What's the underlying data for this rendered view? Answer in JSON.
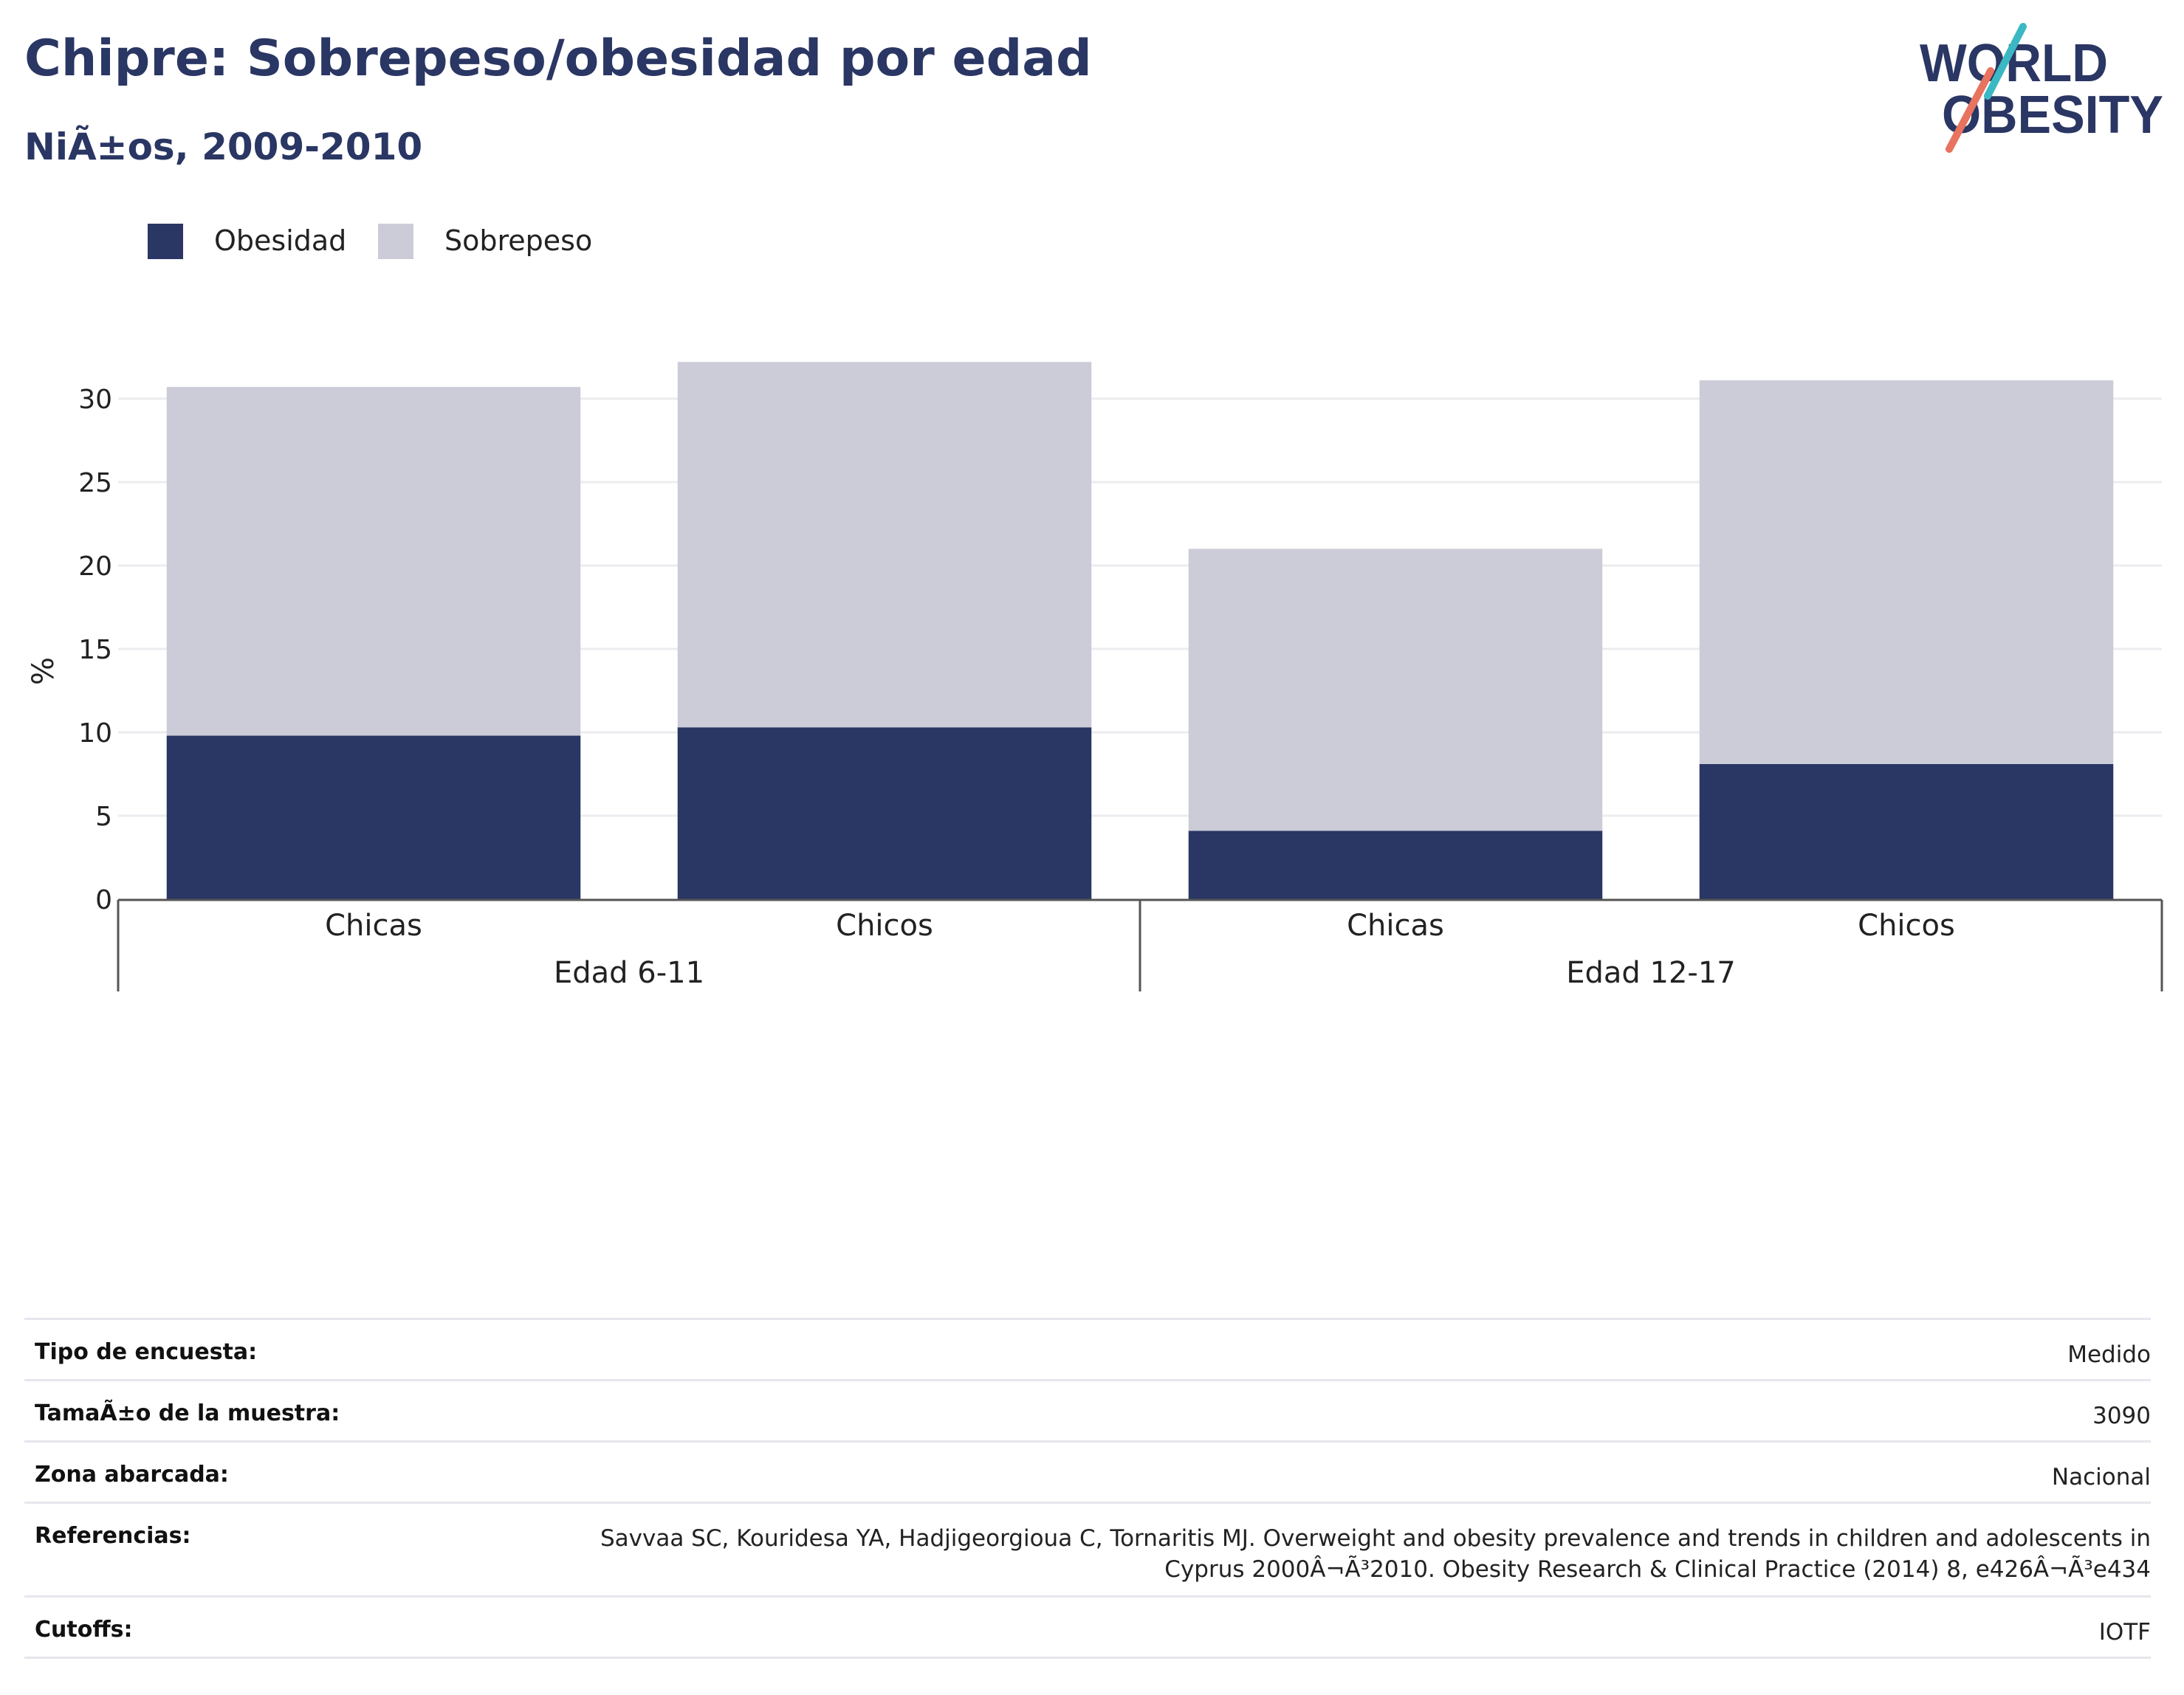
{
  "header": {
    "title": "Chipre: Sobrepeso/obesidad por edad",
    "subtitle": "NiÃ±os, 2009-2010"
  },
  "logo": {
    "line1": "WORLD",
    "line2": "OBESITY"
  },
  "colors": {
    "obesity": "#2a3663",
    "overweight": "#cbccd8",
    "text": "#2a3663",
    "grid": "#ececf0",
    "axis": "#555555"
  },
  "chart_data": {
    "type": "bar",
    "stacked": true,
    "ylabel": "%",
    "ylim": [
      0,
      32.5
    ],
    "yticks": [
      0,
      5,
      10,
      15,
      20,
      25,
      30
    ],
    "grid": true,
    "legend_position": "top-left",
    "groups": [
      {
        "label": "Edad 6-11",
        "categories": [
          "Chicas",
          "Chicos"
        ]
      },
      {
        "label": "Edad 12-17",
        "categories": [
          "Chicas",
          "Chicos"
        ]
      }
    ],
    "series": [
      {
        "name": "Obesidad",
        "color": "#2a3663",
        "values": [
          9.8,
          10.3,
          4.1,
          8.1
        ]
      },
      {
        "name": "Sobrepeso",
        "color": "#cbccd8",
        "values": [
          20.9,
          21.9,
          16.9,
          23.0
        ]
      }
    ]
  },
  "meta": [
    {
      "label": "Tipo de encuesta:",
      "value": "Medido"
    },
    {
      "label": "TamaÃ±o de la muestra:",
      "value": "3090"
    },
    {
      "label": "Zona abarcada:",
      "value": "Nacional"
    },
    {
      "label": "Referencias:",
      "value": "Savvaa SC, Kouridesa YA, Hadjigeorgioua C, Tornaritis MJ. Overweight and obesity prevalence and trends in children and adolescents in Cyprus 2000Â¬Ã³2010. Obesity Research & Clinical Practice (2014) 8, e426Â¬Ã³e434"
    },
    {
      "label": "Cutoffs:",
      "value": "IOTF"
    }
  ]
}
